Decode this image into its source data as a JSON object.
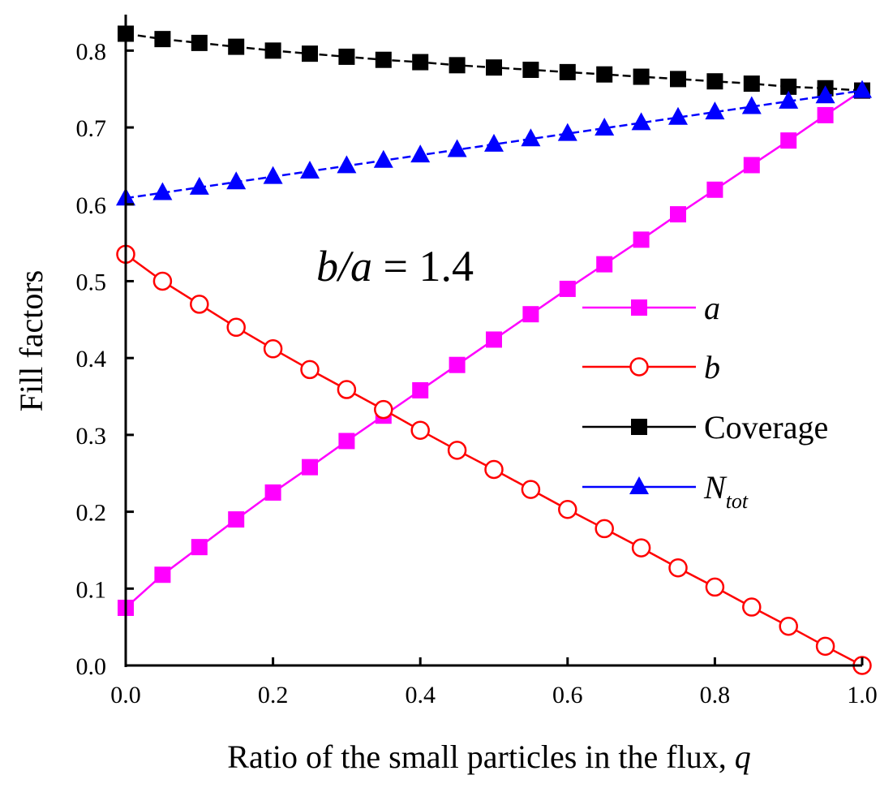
{
  "chart_data": {
    "type": "line",
    "xlabel": "Ratio of the small particles in the flux, ",
    "xlabel_var": "q",
    "ylabel": "Fill factors",
    "xlim": [
      0.0,
      1.0
    ],
    "ylim": [
      0.0,
      0.85
    ],
    "xticks": [
      "0.0",
      "0.2",
      "0.4",
      "0.6",
      "0.8",
      "1.0"
    ],
    "yticks": [
      "0.0",
      "0.1",
      "0.2",
      "0.3",
      "0.4",
      "0.5",
      "0.6",
      "0.7",
      "0.8"
    ],
    "annotation": {
      "ratio_num": "b",
      "ratio_den": "a",
      "value": " = 1.4"
    },
    "x": [
      0.0,
      0.05,
      0.1,
      0.15,
      0.2,
      0.25,
      0.3,
      0.35,
      0.4,
      0.45,
      0.5,
      0.55,
      0.6,
      0.65,
      0.7,
      0.75,
      0.8,
      0.85,
      0.9,
      0.95,
      1.0
    ],
    "series": [
      {
        "name": "a",
        "name_sub": "",
        "color": "#ff00ff",
        "marker": "square-filled",
        "dashed": false,
        "values": [
          0.075,
          0.118,
          0.154,
          0.19,
          0.225,
          0.258,
          0.292,
          0.325,
          0.358,
          0.391,
          0.424,
          0.457,
          0.49,
          0.522,
          0.554,
          0.587,
          0.619,
          0.651,
          0.683,
          0.716,
          0.748
        ]
      },
      {
        "name": "b",
        "name_sub": "",
        "color": "#ff0000",
        "marker": "circle-open",
        "dashed": false,
        "values": [
          0.535,
          0.5,
          0.47,
          0.44,
          0.412,
          0.385,
          0.359,
          0.333,
          0.306,
          0.28,
          0.255,
          0.229,
          0.203,
          0.178,
          0.153,
          0.127,
          0.102,
          0.076,
          0.051,
          0.025,
          0.0
        ]
      },
      {
        "name": "Coverage",
        "name_sub": "",
        "color": "#000000",
        "marker": "square-filled",
        "dashed": true,
        "values": [
          0.822,
          0.815,
          0.81,
          0.805,
          0.8,
          0.796,
          0.792,
          0.788,
          0.785,
          0.781,
          0.778,
          0.775,
          0.772,
          0.769,
          0.766,
          0.763,
          0.76,
          0.757,
          0.753,
          0.751,
          0.748
        ]
      },
      {
        "name": "N",
        "name_sub": "tot",
        "color": "#0000ff",
        "marker": "triangle-filled",
        "dashed": true,
        "values": [
          0.608,
          0.615,
          0.622,
          0.629,
          0.636,
          0.643,
          0.65,
          0.657,
          0.664,
          0.671,
          0.678,
          0.685,
          0.692,
          0.699,
          0.706,
          0.713,
          0.72,
          0.727,
          0.734,
          0.741,
          0.748
        ]
      }
    ]
  }
}
